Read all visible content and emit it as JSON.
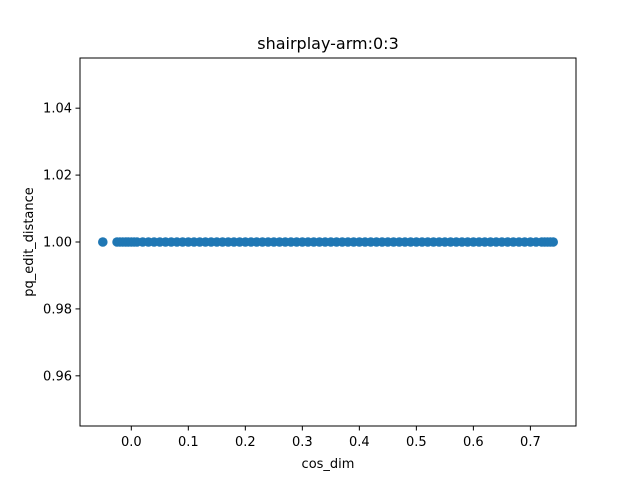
{
  "chart_data": {
    "type": "scatter",
    "title": "shairplay-arm:0:3",
    "xlabel": "cos_dim",
    "ylabel": "pq_edit_distance",
    "xlim": [
      -0.09,
      0.78
    ],
    "ylim": [
      0.945,
      1.055
    ],
    "xticks": [
      0.0,
      0.1,
      0.2,
      0.3,
      0.4,
      0.5,
      0.6,
      0.7
    ],
    "xtick_labels": [
      "0.0",
      "0.1",
      "0.2",
      "0.3",
      "0.4",
      "0.5",
      "0.6",
      "0.7"
    ],
    "yticks": [
      0.96,
      0.98,
      1.0,
      1.02,
      1.04
    ],
    "ytick_labels": [
      "0.96",
      "0.98",
      "1.00",
      "1.02",
      "1.04"
    ],
    "grid": false,
    "legend": "none",
    "marker_color": "#1f77b4",
    "series": [
      {
        "points": {
          "x": [
            -0.05,
            -0.025,
            -0.02,
            -0.015,
            -0.01,
            -0.005,
            0.0,
            0.005,
            0.01,
            0.02,
            0.03,
            0.04,
            0.05,
            0.06,
            0.07,
            0.08,
            0.09,
            0.1,
            0.11,
            0.12,
            0.13,
            0.14,
            0.15,
            0.16,
            0.17,
            0.18,
            0.19,
            0.2,
            0.21,
            0.22,
            0.23,
            0.24,
            0.25,
            0.26,
            0.27,
            0.28,
            0.29,
            0.3,
            0.31,
            0.32,
            0.33,
            0.34,
            0.35,
            0.36,
            0.37,
            0.38,
            0.39,
            0.4,
            0.41,
            0.42,
            0.43,
            0.44,
            0.45,
            0.46,
            0.47,
            0.48,
            0.49,
            0.5,
            0.51,
            0.52,
            0.53,
            0.54,
            0.55,
            0.56,
            0.57,
            0.58,
            0.59,
            0.6,
            0.61,
            0.62,
            0.63,
            0.64,
            0.65,
            0.66,
            0.67,
            0.68,
            0.69,
            0.7,
            0.71,
            0.72,
            0.725,
            0.73,
            0.735,
            0.74
          ],
          "y": [
            1.0,
            1.0,
            1.0,
            1.0,
            1.0,
            1.0,
            1.0,
            1.0,
            1.0,
            1.0,
            1.0,
            1.0,
            1.0,
            1.0,
            1.0,
            1.0,
            1.0,
            1.0,
            1.0,
            1.0,
            1.0,
            1.0,
            1.0,
            1.0,
            1.0,
            1.0,
            1.0,
            1.0,
            1.0,
            1.0,
            1.0,
            1.0,
            1.0,
            1.0,
            1.0,
            1.0,
            1.0,
            1.0,
            1.0,
            1.0,
            1.0,
            1.0,
            1.0,
            1.0,
            1.0,
            1.0,
            1.0,
            1.0,
            1.0,
            1.0,
            1.0,
            1.0,
            1.0,
            1.0,
            1.0,
            1.0,
            1.0,
            1.0,
            1.0,
            1.0,
            1.0,
            1.0,
            1.0,
            1.0,
            1.0,
            1.0,
            1.0,
            1.0,
            1.0,
            1.0,
            1.0,
            1.0,
            1.0,
            1.0,
            1.0,
            1.0,
            1.0,
            1.0,
            1.0,
            1.0,
            1.0,
            1.0,
            1.0,
            1.0
          ]
        }
      }
    ]
  }
}
